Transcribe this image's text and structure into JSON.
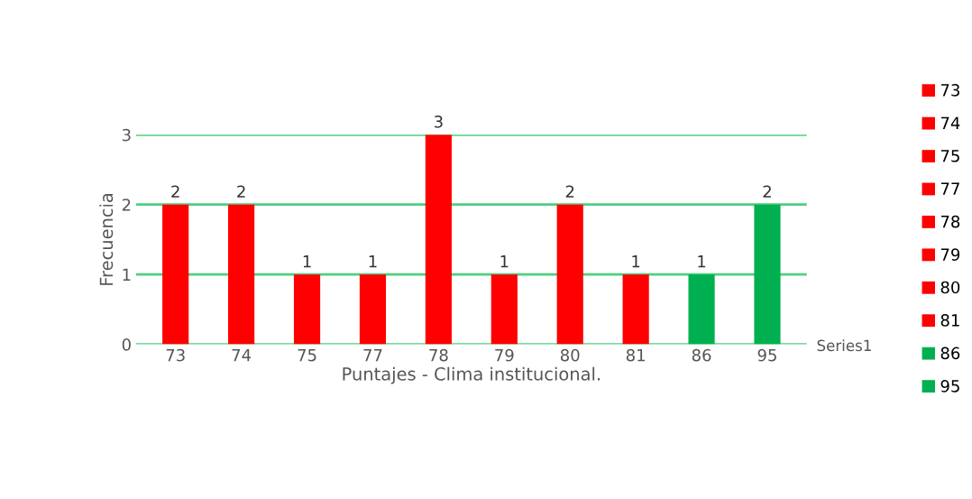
{
  "chart_data": {
    "type": "bar",
    "xlabel": "Puntajes - Clima institucional.",
    "ylabel": "Frecuencia",
    "categories": [
      "73",
      "74",
      "75",
      "77",
      "78",
      "79",
      "80",
      "81",
      "86",
      "95"
    ],
    "series": [
      {
        "name": "73",
        "color": "#ff0000",
        "values": [
          2,
          null,
          null,
          null,
          null,
          null,
          null,
          null,
          null,
          null
        ]
      },
      {
        "name": "74",
        "color": "#ff0000",
        "values": [
          null,
          2,
          null,
          null,
          null,
          null,
          null,
          null,
          null,
          null
        ]
      },
      {
        "name": "75",
        "color": "#ff0000",
        "values": [
          null,
          null,
          1,
          null,
          null,
          null,
          null,
          null,
          null,
          null
        ]
      },
      {
        "name": "77",
        "color": "#ff0000",
        "values": [
          null,
          null,
          null,
          1,
          null,
          null,
          null,
          null,
          null,
          null
        ]
      },
      {
        "name": "78",
        "color": "#ff0000",
        "values": [
          null,
          null,
          null,
          null,
          3,
          null,
          null,
          null,
          null,
          null
        ]
      },
      {
        "name": "79",
        "color": "#ff0000",
        "values": [
          null,
          null,
          null,
          null,
          null,
          1,
          null,
          null,
          null,
          null
        ]
      },
      {
        "name": "80",
        "color": "#ff0000",
        "values": [
          null,
          null,
          null,
          null,
          null,
          null,
          2,
          null,
          null,
          null
        ]
      },
      {
        "name": "81",
        "color": "#ff0000",
        "values": [
          null,
          null,
          null,
          null,
          null,
          null,
          null,
          1,
          null,
          null
        ]
      },
      {
        "name": "86",
        "color": "#00b050",
        "values": [
          null,
          null,
          null,
          null,
          null,
          null,
          null,
          null,
          1,
          null
        ]
      },
      {
        "name": "95",
        "color": "#00b050",
        "values": [
          null,
          null,
          null,
          null,
          null,
          null,
          null,
          null,
          null,
          2
        ]
      }
    ],
    "ylim": [
      0,
      3
    ],
    "yticks": [
      0,
      1,
      2,
      3
    ],
    "grid": "y",
    "data_labels": true,
    "legend": "right",
    "annotations": [
      "Series1"
    ]
  }
}
